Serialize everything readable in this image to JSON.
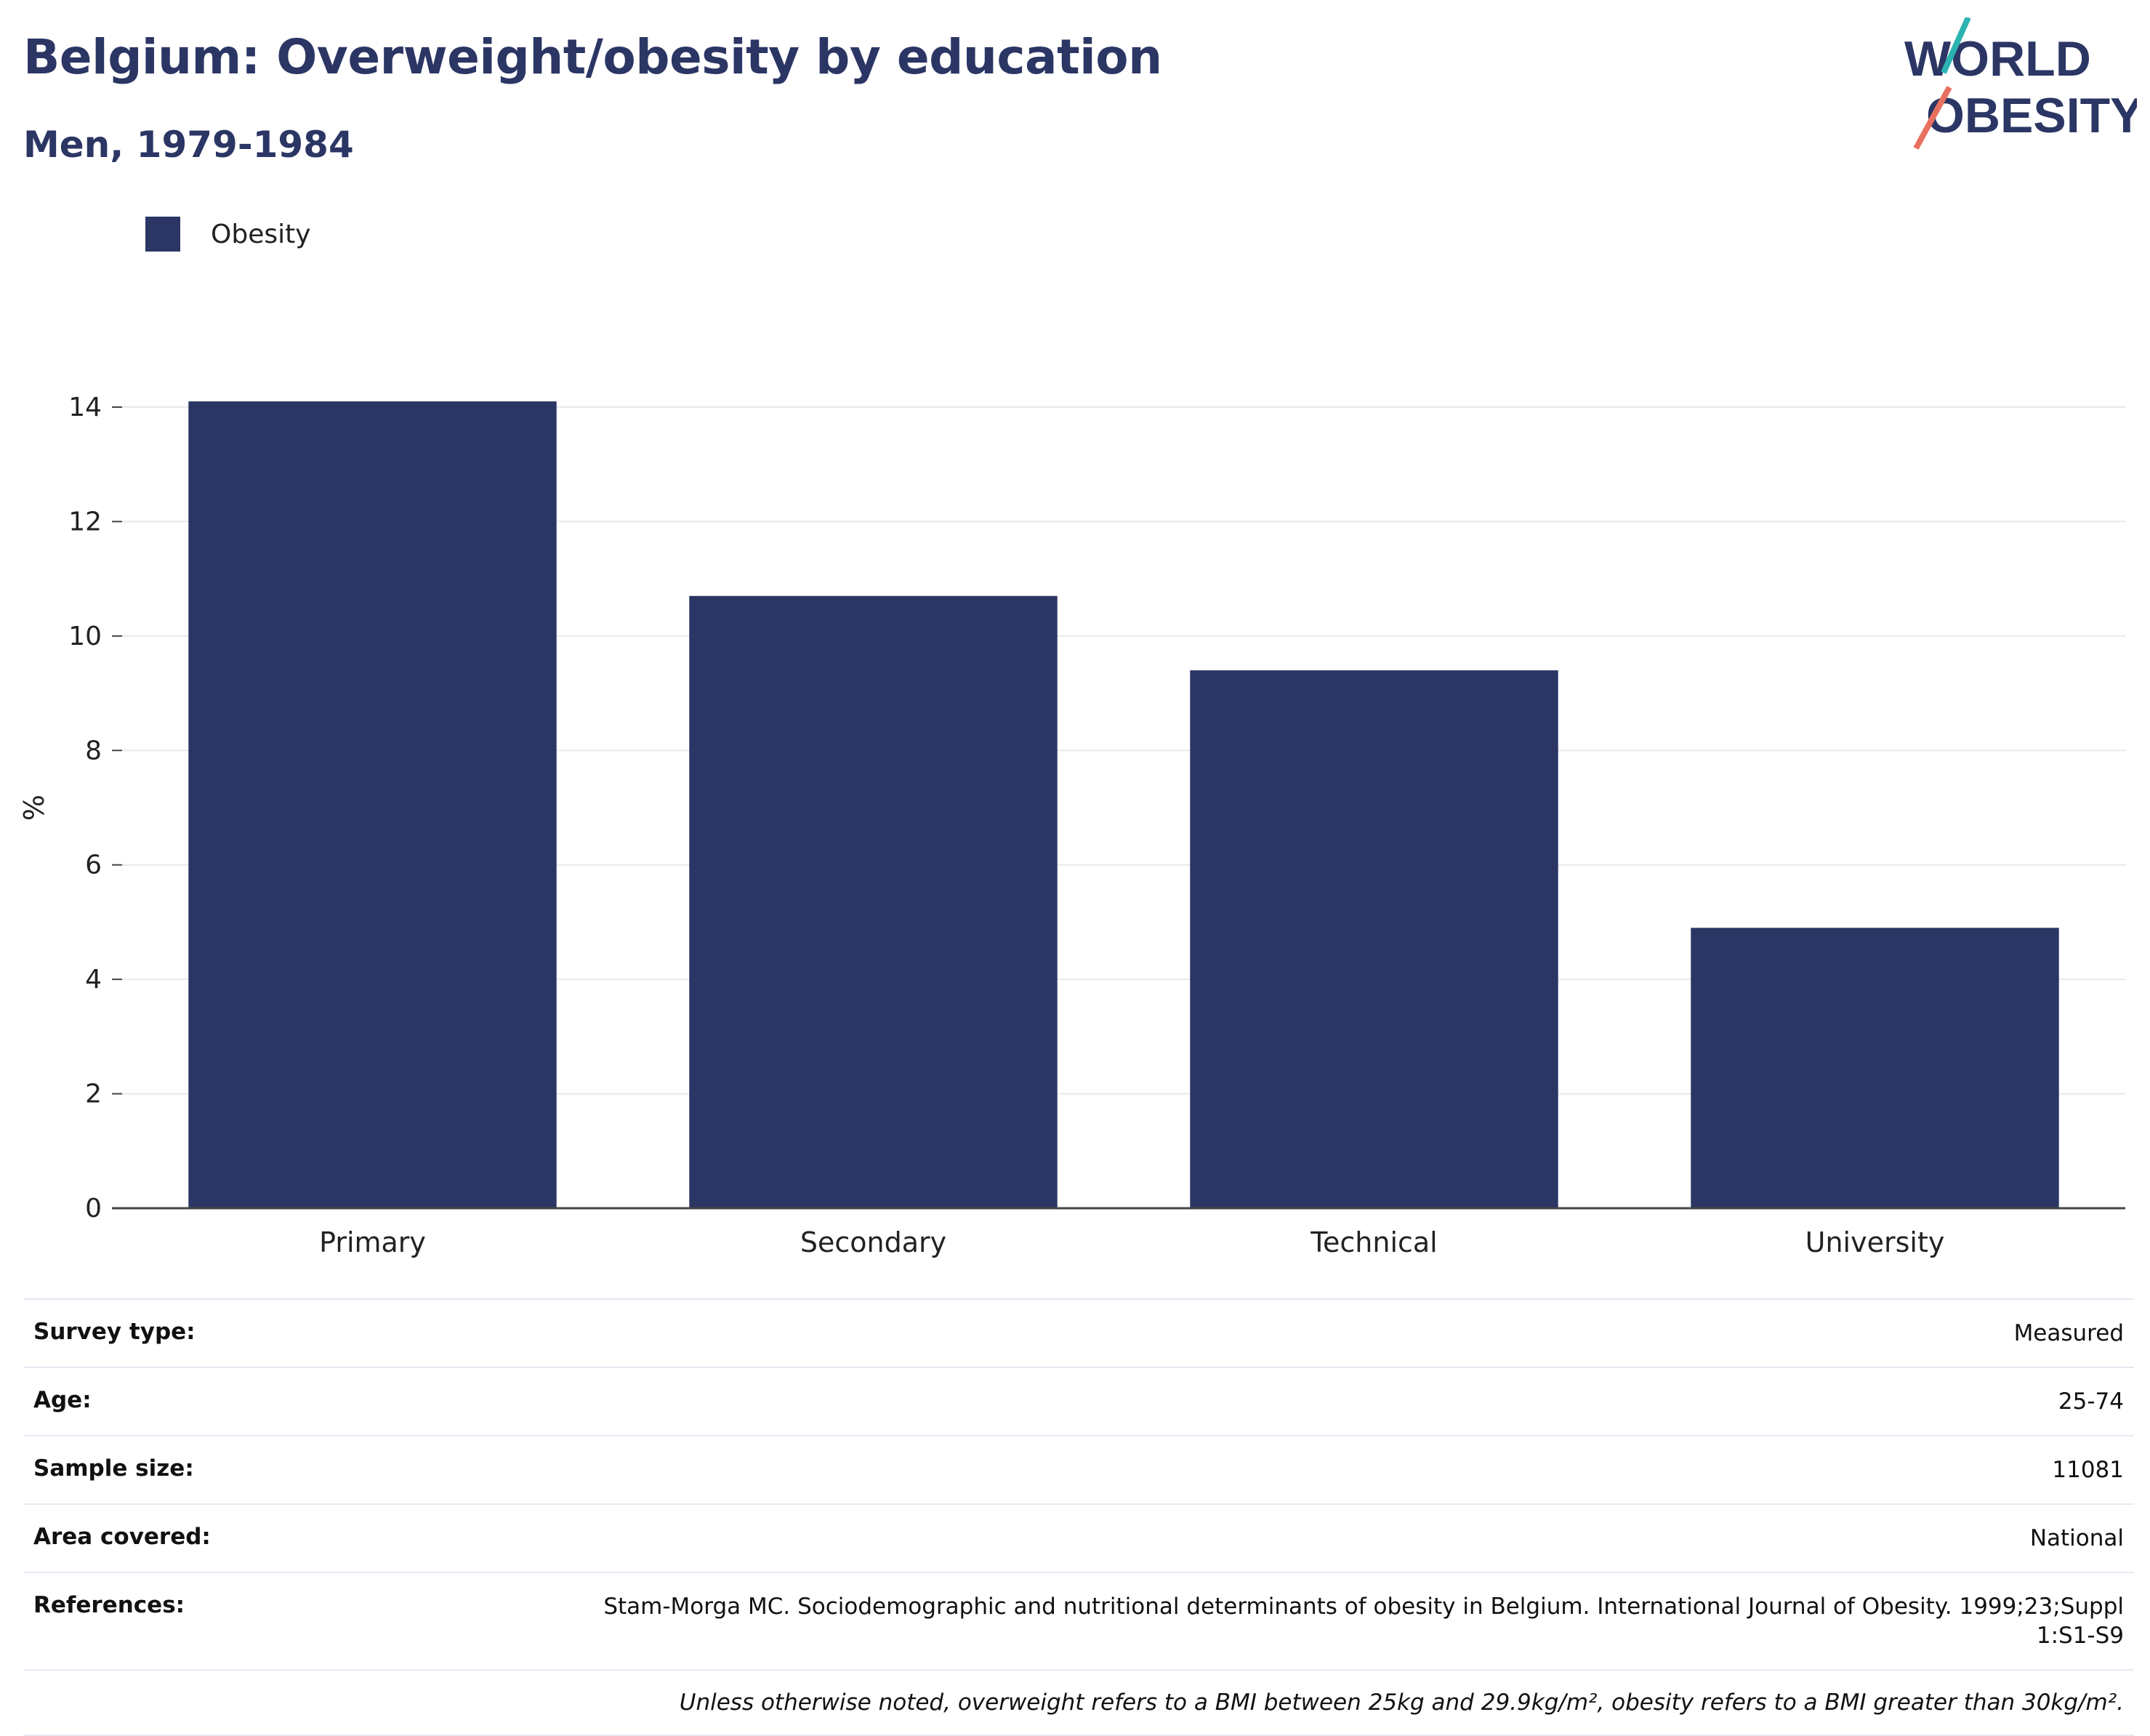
{
  "title": "Belgium: Overweight/obesity by education",
  "subtitle": "Men, 1979-1984",
  "logo": {
    "line1": "WORLD",
    "line2": "OBESITY",
    "accent_colors": [
      "#2bb3b1",
      "#e8705f"
    ]
  },
  "colors": {
    "bar": "#2b3664",
    "title": "#2b3664",
    "axis": "#444444",
    "grid": "#e8e8ee"
  },
  "chart_data": {
    "type": "bar",
    "title": "Belgium: Overweight/obesity by education",
    "subtitle": "Men, 1979-1984",
    "categories": [
      "Primary",
      "Secondary",
      "Technical",
      "University"
    ],
    "series": [
      {
        "name": "Obesity",
        "values": [
          14.1,
          10.7,
          9.4,
          4.9
        ]
      }
    ],
    "xlabel": "",
    "ylabel": "%",
    "ylim": [
      0,
      14
    ],
    "yticks": [
      0,
      2,
      4,
      6,
      8,
      10,
      12,
      14
    ],
    "grid": true,
    "legend_position": "top-left"
  },
  "info_rows": [
    {
      "label": "Survey type:",
      "value": "Measured"
    },
    {
      "label": "Age:",
      "value": "25-74"
    },
    {
      "label": "Sample size:",
      "value": "11081"
    },
    {
      "label": "Area covered:",
      "value": "National"
    },
    {
      "label": "References:",
      "value": "Stam-Morga MC. Sociodemographic and nutritional determinants of obesity in Belgium. International Journal of Obesity. 1999;23;Suppl 1:S1-S9"
    }
  ],
  "footnote": "Unless otherwise noted, overweight refers to a BMI between 25kg and 29.9kg/m², obesity refers to a BMI greater than 30kg/m²."
}
